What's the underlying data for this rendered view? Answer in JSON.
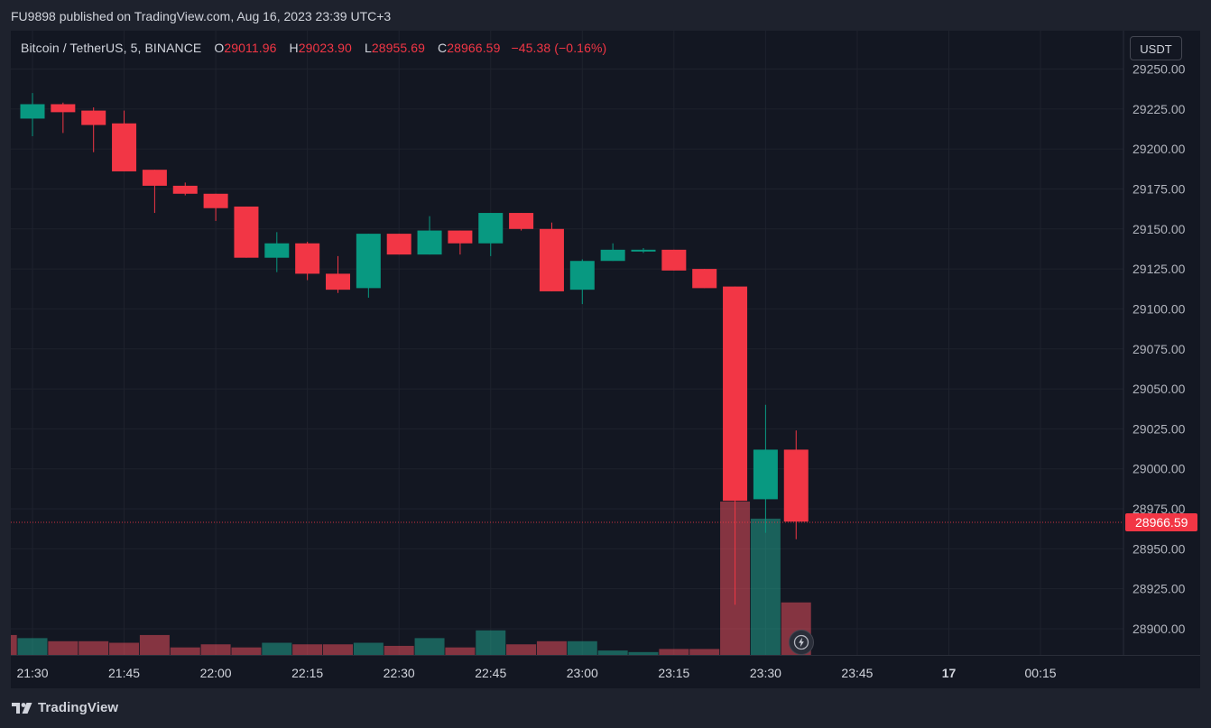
{
  "header": {
    "published": "FU9898 published on TradingView.com, Aug 16, 2023 23:39 UTC+3"
  },
  "legend": {
    "symbol": "Bitcoin / TetherUS, 5, BINANCE",
    "o_label": "O",
    "o_value": "29011.96",
    "h_label": "H",
    "h_value": "29023.90",
    "l_label": "L",
    "l_value": "28955.69",
    "c_label": "C",
    "c_value": "28966.59",
    "change": "−45.38 (−0.16%)"
  },
  "currency": "USDT",
  "footer": {
    "brand": "TradingView"
  },
  "colors": {
    "up": "#089981",
    "down": "#f23645",
    "background": "#131722",
    "grid": "#1e222d"
  },
  "icons": {
    "bolt": "lightning-bolt-icon",
    "logo": "tradingview-logo-icon"
  },
  "chart_data": {
    "type": "candlestick",
    "symbol": "BTCUSDT",
    "interval": "5",
    "ylim": [
      28885,
      29255
    ],
    "y_ticks": [
      "29250.00",
      "29225.00",
      "29200.00",
      "29175.00",
      "29150.00",
      "29125.00",
      "29100.00",
      "29075.00",
      "29050.00",
      "29025.00",
      "29000.00",
      "28975.00",
      "28950.00",
      "28925.00",
      "28900.00"
    ],
    "x_ticks": [
      "21:30",
      "21:45",
      "22:00",
      "22:15",
      "22:30",
      "22:45",
      "23:00",
      "23:15",
      "23:30",
      "23:45",
      "17",
      "00:15"
    ],
    "x_tick_index": [
      0,
      3,
      6,
      9,
      12,
      15,
      18,
      21,
      24,
      27,
      30,
      33
    ],
    "last_price": "28966.59",
    "candles": [
      {
        "t": "21:30",
        "o": 29219,
        "h": 29235,
        "l": 29208,
        "c": 29228
      },
      {
        "t": "21:35",
        "o": 29228,
        "h": 29229,
        "l": 29210,
        "c": 29223
      },
      {
        "t": "21:40",
        "o": 29224,
        "h": 29226,
        "l": 29198,
        "c": 29215
      },
      {
        "t": "21:45",
        "o": 29216,
        "h": 29224,
        "l": 29186,
        "c": 29186
      },
      {
        "t": "21:50",
        "o": 29187,
        "h": 29187,
        "l": 29160,
        "c": 29177
      },
      {
        "t": "21:55",
        "o": 29177,
        "h": 29179,
        "l": 29171,
        "c": 29172
      },
      {
        "t": "22:00",
        "o": 29172,
        "h": 29172,
        "l": 29155,
        "c": 29163
      },
      {
        "t": "22:05",
        "o": 29164,
        "h": 29164,
        "l": 29132,
        "c": 29132
      },
      {
        "t": "22:10",
        "o": 29132,
        "h": 29148,
        "l": 29123,
        "c": 29141
      },
      {
        "t": "22:15",
        "o": 29141,
        "h": 29142,
        "l": 29118,
        "c": 29122
      },
      {
        "t": "22:20",
        "o": 29122,
        "h": 29133,
        "l": 29110,
        "c": 29112
      },
      {
        "t": "22:25",
        "o": 29113,
        "h": 29147,
        "l": 29107,
        "c": 29147
      },
      {
        "t": "22:30",
        "o": 29147,
        "h": 29147,
        "l": 29134,
        "c": 29134
      },
      {
        "t": "22:35",
        "o": 29134,
        "h": 29158,
        "l": 29134,
        "c": 29149
      },
      {
        "t": "22:40",
        "o": 29149,
        "h": 29149,
        "l": 29134,
        "c": 29141
      },
      {
        "t": "22:45",
        "o": 29141,
        "h": 29160,
        "l": 29133,
        "c": 29160
      },
      {
        "t": "22:50",
        "o": 29160,
        "h": 29160,
        "l": 29149,
        "c": 29150
      },
      {
        "t": "22:55",
        "o": 29150,
        "h": 29154,
        "l": 29111,
        "c": 29111
      },
      {
        "t": "23:00",
        "o": 29112,
        "h": 29131,
        "l": 29103,
        "c": 29130
      },
      {
        "t": "23:05",
        "o": 29130,
        "h": 29141,
        "l": 29130,
        "c": 29137
      },
      {
        "t": "23:10",
        "o": 29136,
        "h": 29138,
        "l": 29135,
        "c": 29137
      },
      {
        "t": "23:15",
        "o": 29137,
        "h": 29137,
        "l": 29124,
        "c": 29124
      },
      {
        "t": "23:20",
        "o": 29125,
        "h": 29125,
        "l": 29113,
        "c": 29113
      },
      {
        "t": "23:25",
        "o": 29114,
        "h": 29114,
        "l": 28915,
        "c": 28980
      },
      {
        "t": "23:30",
        "o": 28981,
        "h": 29040,
        "l": 28960,
        "c": 29012
      },
      {
        "t": "23:35",
        "o": 29012,
        "h": 29024,
        "l": 28956,
        "c": 28967
      }
    ],
    "volume": [
      {
        "t": "21:25",
        "v": 0.14,
        "dir": "down"
      },
      {
        "t": "21:30",
        "v": 0.12,
        "dir": "up"
      },
      {
        "t": "21:35",
        "v": 0.1,
        "dir": "down"
      },
      {
        "t": "21:40",
        "v": 0.1,
        "dir": "down"
      },
      {
        "t": "21:45",
        "v": 0.09,
        "dir": "down"
      },
      {
        "t": "21:50",
        "v": 0.14,
        "dir": "down"
      },
      {
        "t": "21:55",
        "v": 0.06,
        "dir": "down"
      },
      {
        "t": "22:00",
        "v": 0.08,
        "dir": "down"
      },
      {
        "t": "22:05",
        "v": 0.06,
        "dir": "down"
      },
      {
        "t": "22:10",
        "v": 0.09,
        "dir": "up"
      },
      {
        "t": "22:15",
        "v": 0.08,
        "dir": "down"
      },
      {
        "t": "22:20",
        "v": 0.08,
        "dir": "down"
      },
      {
        "t": "22:25",
        "v": 0.09,
        "dir": "up"
      },
      {
        "t": "22:30",
        "v": 0.07,
        "dir": "down"
      },
      {
        "t": "22:35",
        "v": 0.12,
        "dir": "up"
      },
      {
        "t": "22:40",
        "v": 0.06,
        "dir": "down"
      },
      {
        "t": "22:45",
        "v": 0.17,
        "dir": "up"
      },
      {
        "t": "22:50",
        "v": 0.08,
        "dir": "down"
      },
      {
        "t": "22:55",
        "v": 0.1,
        "dir": "down"
      },
      {
        "t": "23:00",
        "v": 0.1,
        "dir": "up"
      },
      {
        "t": "23:05",
        "v": 0.04,
        "dir": "up"
      },
      {
        "t": "23:10",
        "v": 0.03,
        "dir": "up"
      },
      {
        "t": "23:15",
        "v": 0.05,
        "dir": "down"
      },
      {
        "t": "23:20",
        "v": 0.05,
        "dir": "down"
      },
      {
        "t": "23:25",
        "v": 1.0,
        "dir": "down"
      },
      {
        "t": "23:30",
        "v": 0.89,
        "dir": "up"
      },
      {
        "t": "23:35",
        "v": 0.35,
        "dir": "down"
      }
    ]
  }
}
